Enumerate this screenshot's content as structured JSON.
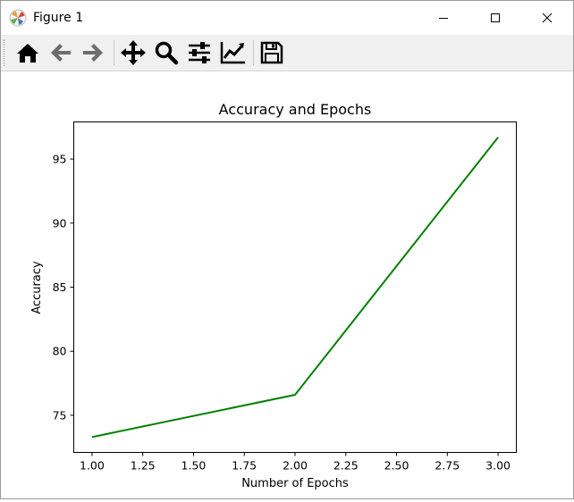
{
  "window": {
    "title": "Figure 1"
  },
  "titlebar_buttons": {
    "minimize": "minimize-icon",
    "maximize": "maximize-icon",
    "close": "close-icon"
  },
  "toolbar": {
    "items": [
      "home-icon",
      "back-arrow-icon",
      "forward-arrow-icon",
      "pan-icon",
      "zoom-icon",
      "subplots-config-icon",
      "edit-axis-icon",
      "save-icon"
    ]
  },
  "colors": {
    "line": "#008000",
    "toolbar_bg": "#f0f0f0",
    "disabled_arrow": "#6d6d6d"
  },
  "chart_data": {
    "type": "line",
    "title": "Accuracy and Epochs",
    "xlabel": "Number of Epochs",
    "ylabel": "Accuracy",
    "xlim": [
      0.91,
      3.09
    ],
    "ylim": [
      72.1,
      97.9
    ],
    "xticks": [
      "1.00",
      "1.25",
      "1.50",
      "1.75",
      "2.00",
      "2.25",
      "2.50",
      "2.75",
      "3.00"
    ],
    "yticks": [
      "75",
      "80",
      "85",
      "90",
      "95"
    ],
    "grid": false,
    "series": [
      {
        "x": [
          1.0,
          2.0,
          3.0
        ],
        "y": [
          73.3,
          76.6,
          96.7
        ],
        "color": "#008000"
      }
    ]
  }
}
